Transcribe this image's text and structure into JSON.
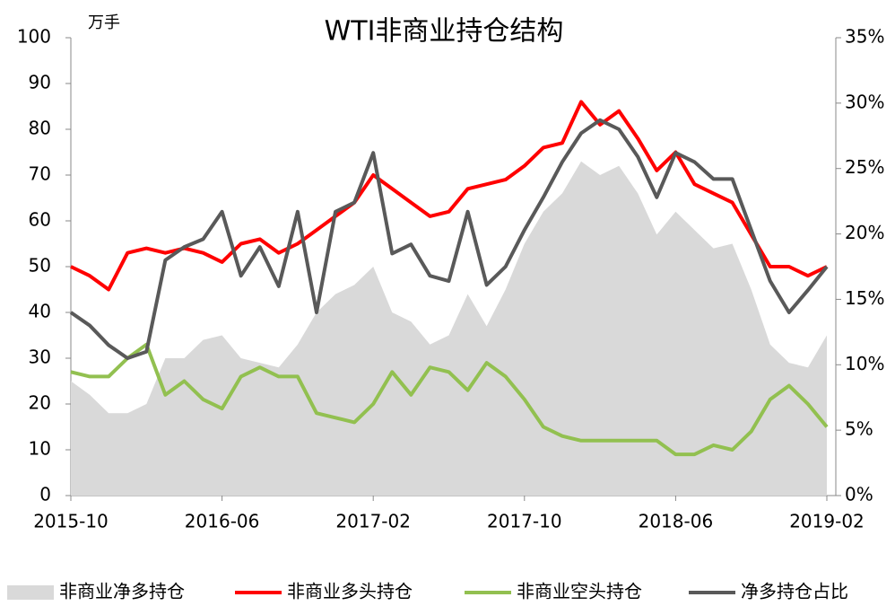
{
  "chart_data": {
    "type": "line",
    "title": "WTI非商业持仓结构",
    "y_unit_label": "万手",
    "categories": [
      "2015-10",
      null,
      null,
      null,
      null,
      null,
      null,
      null,
      "2016-06",
      null,
      null,
      null,
      null,
      null,
      null,
      null,
      "2017-02",
      null,
      null,
      null,
      null,
      null,
      null,
      null,
      "2017-10",
      null,
      null,
      null,
      null,
      null,
      null,
      null,
      "2018-06",
      null,
      null,
      null,
      null,
      null,
      null,
      null,
      "2019-02"
    ],
    "series": [
      {
        "name": "非商业净多持仓",
        "kind": "area",
        "color": "#d9d9d9",
        "values": [
          25,
          22,
          18,
          18,
          20,
          30,
          30,
          34,
          35,
          30,
          29,
          28,
          33,
          40,
          44,
          46,
          50,
          40,
          38,
          33,
          35,
          44,
          37,
          45,
          55,
          62,
          66,
          73,
          70,
          72,
          66,
          57,
          62,
          58,
          54,
          55,
          45,
          33,
          29,
          28,
          35
        ]
      },
      {
        "name": "非商业多头持仓",
        "kind": "line",
        "color": "#ff0000",
        "values": [
          50,
          48,
          45,
          53,
          54,
          53,
          54,
          53,
          51,
          55,
          56,
          53,
          55,
          58,
          61,
          64,
          70,
          67,
          64,
          61,
          62,
          67,
          68,
          69,
          72,
          76,
          77,
          86,
          81,
          84,
          78,
          71,
          75,
          68,
          66,
          64,
          57,
          50,
          50,
          48,
          50
        ]
      },
      {
        "name": "非商业空头持仓",
        "kind": "line",
        "color": "#92c050",
        "values": [
          27,
          26,
          26,
          30,
          33,
          22,
          25,
          21,
          19,
          26,
          28,
          26,
          26,
          18,
          17,
          16,
          20,
          27,
          22,
          28,
          27,
          23,
          29,
          26,
          21,
          15,
          13,
          12,
          12,
          12,
          12,
          12,
          9,
          9,
          11,
          10,
          14,
          21,
          24,
          20,
          15
        ]
      },
      {
        "name": "净多持仓占比",
        "kind": "line",
        "color": "#595959",
        "axis": "y2",
        "values": [
          14,
          13,
          11.5,
          10.5,
          11,
          18,
          19,
          19.6,
          21.7,
          16.8,
          19,
          16,
          21.7,
          14,
          21.7,
          22.4,
          26.2,
          18.5,
          19.2,
          16.8,
          16.4,
          21.7,
          16.1,
          17.5,
          20.3,
          22.8,
          25.5,
          27.7,
          28.7,
          28,
          25.9,
          22.8,
          26.2,
          25.5,
          24.2,
          24.2,
          20.3,
          16.4,
          14,
          15.7,
          17.5
        ]
      }
    ],
    "ylim": [
      0,
      100
    ],
    "yticks": [
      0,
      10,
      20,
      30,
      40,
      50,
      60,
      70,
      80,
      90,
      100
    ],
    "y2lim": [
      0,
      35
    ],
    "y2ticks": [
      {
        "value": 0,
        "label": "0%"
      },
      {
        "value": 5,
        "label": "5%"
      },
      {
        "value": 10,
        "label": "10%"
      },
      {
        "value": 15,
        "label": "15%"
      },
      {
        "value": 20,
        "label": "20%"
      },
      {
        "value": 25,
        "label": "25%"
      },
      {
        "value": 30,
        "label": "30%"
      },
      {
        "value": 35,
        "label": "35%"
      }
    ],
    "legend": "bottom"
  }
}
